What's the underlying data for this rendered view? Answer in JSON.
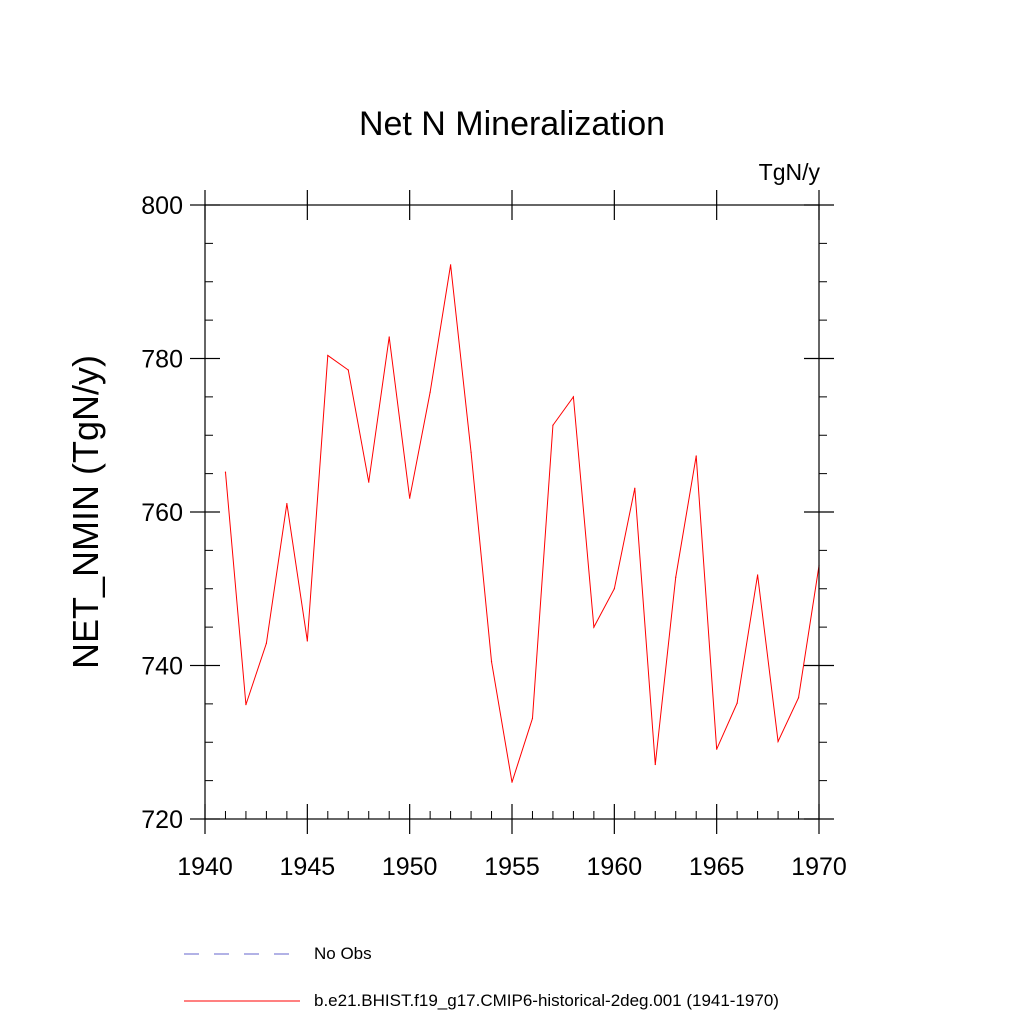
{
  "chart_data": {
    "type": "line",
    "title": "Net N Mineralization",
    "units_label": "TgN/y",
    "xlabel": "",
    "ylabel": "NET_NMIN  (TgN/y)",
    "xlim": [
      1940,
      1970
    ],
    "ylim": [
      720,
      800
    ],
    "x_ticks": [
      1940,
      1945,
      1950,
      1955,
      1960,
      1965,
      1970
    ],
    "x_tick_labels": [
      "1940",
      "1945",
      "1950",
      "1955",
      "1960",
      "1965",
      "1970"
    ],
    "y_ticks": [
      720,
      740,
      760,
      780,
      800
    ],
    "y_tick_labels": [
      "720",
      "740",
      "760",
      "780",
      "800"
    ],
    "y_minor_step": 5,
    "x_minor_step": 1,
    "grid": false,
    "series": [
      {
        "name": "b.e21.BHIST.f19_g17.CMIP6-historical-2deg.001 (1941-1970)",
        "color": "#ff0000",
        "style": "solid",
        "x": [
          1941,
          1942,
          1943,
          1944,
          1945,
          1946,
          1947,
          1948,
          1949,
          1950,
          1951,
          1952,
          1953,
          1954,
          1955,
          1956,
          1957,
          1958,
          1959,
          1960,
          1961,
          1962,
          1963,
          1964,
          1965,
          1966,
          1967,
          1968,
          1969,
          1970
        ],
        "values": [
          765.2,
          734.9,
          742.9,
          761.1,
          743.2,
          780.4,
          778.5,
          763.9,
          782.8,
          761.8,
          775.6,
          792.2,
          767.8,
          740.5,
          724.8,
          733.1,
          771.3,
          775.0,
          745.0,
          750.0,
          763.1,
          727.1,
          751.5,
          767.3,
          729.1,
          735.1,
          751.8,
          730.1,
          735.8,
          753.0
        ]
      }
    ],
    "legend": [
      {
        "label": "No Obs",
        "color": "#6666cc",
        "style": "dashed"
      },
      {
        "label": "b.e21.BHIST.f19_g17.CMIP6-historical-2deg.001 (1941-1970)",
        "color": "#ff0000",
        "style": "solid"
      }
    ],
    "legend_position": "bottom"
  }
}
